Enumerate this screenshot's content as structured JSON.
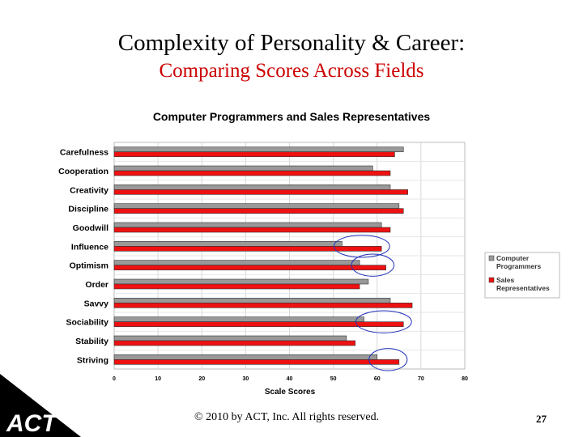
{
  "slide": {
    "title": "Complexity of Personality & Career:",
    "subtitle": "Comparing Scores Across Fields",
    "copyright": "© 2010 by ACT, Inc. All rights reserved.",
    "page_number": "27",
    "logo_text": "ACT",
    "logo_mark": "®"
  },
  "chart_data": {
    "type": "bar",
    "orientation": "horizontal",
    "title": "Computer Programmers and Sales Representatives",
    "xlabel": "Scale Scores",
    "ylabel": "",
    "categories": [
      "Carefulness",
      "Cooperation",
      "Creativity",
      "Discipline",
      "Goodwill",
      "Influence",
      "Optimism",
      "Order",
      "Savvy",
      "Sociability",
      "Stability",
      "Striving"
    ],
    "series": [
      {
        "name": "Computer Programmers",
        "color": "#999999",
        "values": [
          66,
          59,
          63,
          65,
          61,
          52,
          56,
          58,
          63,
          57,
          53,
          60
        ]
      },
      {
        "name": "Sales Representatives",
        "color": "#ee1111",
        "values": [
          64,
          63,
          67,
          66,
          63,
          61,
          62,
          56,
          68,
          66,
          55,
          65
        ]
      }
    ],
    "xlim": [
      0,
      80
    ],
    "xticks": [
      "0",
      "10",
      "20",
      "30",
      "40",
      "50",
      "60",
      "70",
      "80"
    ],
    "grid": true,
    "legend_position": "right",
    "highlighted_categories": [
      "Influence",
      "Optimism",
      "Sociability",
      "Striving"
    ]
  }
}
